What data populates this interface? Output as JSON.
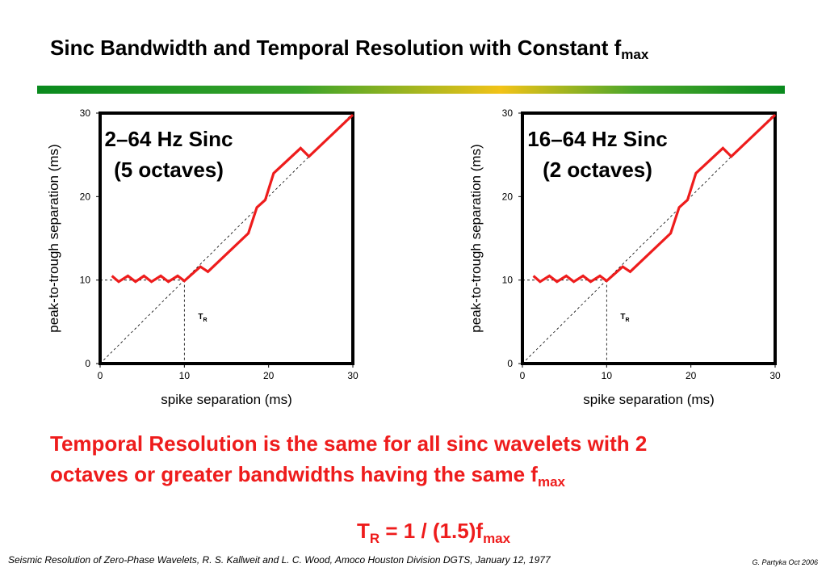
{
  "title": {
    "main": "Sinc Bandwidth and Temporal Resolution with Constant f",
    "sub": "max"
  },
  "colors": {
    "curve": "#ee1c1c",
    "message": "#ee1c1c",
    "axis": "#000000"
  },
  "chart_data": [
    {
      "type": "line",
      "label_line1": "2–64 Hz Sinc",
      "label_line2": "(5 octaves)",
      "xlabel": "spike separation (ms)",
      "ylabel": "peak-to-trough separation (ms)",
      "xlim": [
        0,
        30
      ],
      "ylim": [
        0,
        30
      ],
      "xticks": [
        0,
        10,
        20,
        30
      ],
      "yticks": [
        0,
        10,
        20,
        30
      ],
      "marker_label": "T",
      "marker_sub": "R",
      "marker_x": 10,
      "series": [
        {
          "x": [
            1.4,
            2.2,
            3.3,
            4.2,
            5.2,
            6.1,
            7.2,
            8.1,
            9.2,
            10.0,
            11.9,
            12.8,
            17.6,
            18.6,
            19.6,
            20.6,
            23.8,
            24.8,
            30.0
          ],
          "y": [
            10.5,
            9.8,
            10.5,
            9.8,
            10.5,
            9.8,
            10.5,
            9.8,
            10.5,
            9.9,
            11.6,
            11.0,
            15.6,
            18.7,
            19.6,
            22.8,
            25.8,
            24.8,
            29.8
          ]
        },
        {
          "x": [
            0,
            30
          ],
          "y": [
            0,
            30
          ]
        }
      ]
    },
    {
      "type": "line",
      "label_line1": "16–64 Hz Sinc",
      "label_line2": "(2 octaves)",
      "xlabel": "spike separation (ms)",
      "ylabel": "peak-to-trough separation (ms)",
      "xlim": [
        0,
        30
      ],
      "ylim": [
        0,
        30
      ],
      "xticks": [
        0,
        10,
        20,
        30
      ],
      "yticks": [
        0,
        10,
        20,
        30
      ],
      "marker_label": "T",
      "marker_sub": "R",
      "marker_x": 10,
      "series": [
        {
          "x": [
            1.3,
            2.1,
            3.2,
            4.1,
            5.2,
            6.1,
            7.2,
            8.1,
            9.2,
            10.0,
            11.9,
            12.8,
            17.6,
            18.6,
            19.6,
            20.6,
            23.8,
            24.8,
            30.0
          ],
          "y": [
            10.5,
            9.8,
            10.5,
            9.8,
            10.5,
            9.8,
            10.5,
            9.8,
            10.5,
            9.9,
            11.6,
            11.0,
            15.6,
            18.7,
            19.6,
            22.8,
            25.8,
            24.8,
            29.8
          ]
        },
        {
          "x": [
            0,
            30
          ],
          "y": [
            0,
            30
          ]
        }
      ]
    }
  ],
  "message": {
    "line1": "Temporal Resolution is the same for all sinc wavelets with 2",
    "line2": "octaves or greater bandwidths having the same f",
    "sub": "max"
  },
  "formula": {
    "t": "T",
    "t_sub": "R",
    "eq": " = 1 / (1.5)f",
    "f_sub": "max"
  },
  "footer": "Seismic Resolution of Zero-Phase Wavelets, R. S. Kallweit and L. C. Wood, Amoco Houston Division DGTS,  January 12, 1977",
  "credit": "G. Partyka Oct 2006"
}
